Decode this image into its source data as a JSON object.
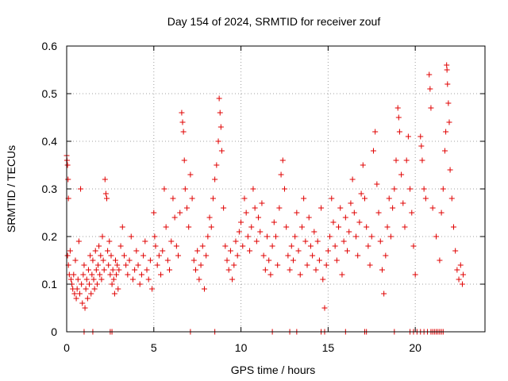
{
  "chart_data": {
    "type": "scatter",
    "title": "Day 154 of 2024, SRMTID for receiver zouf",
    "xlabel": "GPS time / hours",
    "ylabel": "SRMTID / TECUs",
    "xlim": [
      0,
      24
    ],
    "ylim": [
      0,
      0.6
    ],
    "x_ticks": [
      0,
      5,
      10,
      15,
      20
    ],
    "x_tick_labels": [
      "0",
      "5",
      "10",
      "15",
      "20"
    ],
    "y_ticks": [
      0,
      0.1,
      0.2,
      0.3,
      0.4,
      0.5,
      0.6
    ],
    "y_tick_labels": [
      "0",
      "0.1",
      "0.2",
      "0.3",
      "0.4",
      "0.5",
      "0.6"
    ],
    "grid": true,
    "marker": "plus",
    "color": "#e00000",
    "series": [
      {
        "name": "SRMTID",
        "points": [
          [
            0.0,
            0.37
          ],
          [
            0.02,
            0.36
          ],
          [
            0.05,
            0.35
          ],
          [
            0.08,
            0.32
          ],
          [
            0.1,
            0.28
          ],
          [
            0.05,
            0.16
          ],
          [
            0.1,
            0.14
          ],
          [
            0.15,
            0.12
          ],
          [
            0.2,
            0.17
          ],
          [
            0.25,
            0.11
          ],
          [
            0.3,
            0.1
          ],
          [
            0.35,
            0.09
          ],
          [
            0.4,
            0.12
          ],
          [
            0.45,
            0.08
          ],
          [
            0.5,
            0.15
          ],
          [
            0.55,
            0.07
          ],
          [
            0.6,
            0.09
          ],
          [
            0.65,
            0.11
          ],
          [
            0.7,
            0.19
          ],
          [
            0.75,
            0.08
          ],
          [
            0.8,
            0.3
          ],
          [
            0.85,
            0.1
          ],
          [
            0.9,
            0.06
          ],
          [
            0.95,
            0.12
          ],
          [
            1.0,
            0.14
          ],
          [
            1.05,
            0.05
          ],
          [
            1.1,
            0.09
          ],
          [
            1.15,
            0.11
          ],
          [
            1.2,
            0.07
          ],
          [
            1.25,
            0.13
          ],
          [
            1.3,
            0.1
          ],
          [
            1.35,
            0.16
          ],
          [
            1.4,
            0.08
          ],
          [
            1.45,
            0.12
          ],
          [
            1.5,
            0.15
          ],
          [
            1.55,
            0.11
          ],
          [
            1.6,
            0.09
          ],
          [
            1.65,
            0.17
          ],
          [
            1.7,
            0.13
          ],
          [
            1.75,
            0.1
          ],
          [
            1.8,
            0.14
          ],
          [
            1.85,
            0.18
          ],
          [
            1.9,
            0.12
          ],
          [
            1.95,
            0.16
          ],
          [
            2.0,
            0.11
          ],
          [
            2.05,
            0.2
          ],
          [
            2.1,
            0.15
          ],
          [
            2.15,
            0.13
          ],
          [
            2.2,
            0.32
          ],
          [
            2.25,
            0.29
          ],
          [
            2.3,
            0.28
          ],
          [
            2.35,
            0.17
          ],
          [
            2.4,
            0.14
          ],
          [
            2.45,
            0.19
          ],
          [
            2.5,
            0.12
          ],
          [
            2.55,
            0.16
          ],
          [
            2.6,
            0.1
          ],
          [
            2.65,
            0.13
          ],
          [
            2.7,
            0.11
          ],
          [
            2.75,
            0.08
          ],
          [
            2.8,
            0.15
          ],
          [
            2.85,
            0.12
          ],
          [
            2.9,
            0.14
          ],
          [
            2.95,
            0.09
          ],
          [
            3.0,
            0.13
          ],
          [
            3.1,
            0.18
          ],
          [
            3.2,
            0.22
          ],
          [
            3.3,
            0.16
          ],
          [
            3.4,
            0.14
          ],
          [
            3.5,
            0.12
          ],
          [
            3.6,
            0.15
          ],
          [
            3.7,
            0.2
          ],
          [
            3.8,
            0.11
          ],
          [
            3.9,
            0.13
          ],
          [
            4.0,
            0.17
          ],
          [
            4.1,
            0.14
          ],
          [
            4.2,
            0.1
          ],
          [
            4.3,
            0.12
          ],
          [
            4.4,
            0.16
          ],
          [
            4.5,
            0.19
          ],
          [
            4.6,
            0.13
          ],
          [
            4.7,
            0.11
          ],
          [
            4.8,
            0.15
          ],
          [
            4.9,
            0.09
          ],
          [
            5.0,
            0.25
          ],
          [
            5.05,
            0.2
          ],
          [
            5.1,
            0.18
          ],
          [
            5.2,
            0.14
          ],
          [
            5.3,
            0.16
          ],
          [
            5.4,
            0.12
          ],
          [
            5.5,
            0.17
          ],
          [
            5.6,
            0.3
          ],
          [
            5.7,
            0.22
          ],
          [
            5.8,
            0.15
          ],
          [
            5.9,
            0.13
          ],
          [
            6.0,
            0.19
          ],
          [
            6.1,
            0.28
          ],
          [
            6.2,
            0.24
          ],
          [
            6.3,
            0.18
          ],
          [
            6.4,
            0.16
          ],
          [
            6.5,
            0.25
          ],
          [
            6.6,
            0.46
          ],
          [
            6.65,
            0.44
          ],
          [
            6.7,
            0.42
          ],
          [
            6.75,
            0.36
          ],
          [
            6.8,
            0.3
          ],
          [
            6.9,
            0.26
          ],
          [
            7.0,
            0.22
          ],
          [
            7.1,
            0.33
          ],
          [
            7.2,
            0.28
          ],
          [
            7.3,
            0.15
          ],
          [
            7.4,
            0.13
          ],
          [
            7.5,
            0.17
          ],
          [
            7.6,
            0.11
          ],
          [
            7.7,
            0.14
          ],
          [
            7.8,
            0.18
          ],
          [
            7.9,
            0.09
          ],
          [
            8.0,
            0.16
          ],
          [
            8.1,
            0.2
          ],
          [
            8.2,
            0.24
          ],
          [
            8.3,
            0.22
          ],
          [
            8.4,
            0.28
          ],
          [
            8.5,
            0.32
          ],
          [
            8.6,
            0.35
          ],
          [
            8.7,
            0.4
          ],
          [
            8.75,
            0.49
          ],
          [
            8.8,
            0.46
          ],
          [
            8.85,
            0.43
          ],
          [
            8.9,
            0.38
          ],
          [
            9.0,
            0.26
          ],
          [
            9.1,
            0.18
          ],
          [
            9.2,
            0.15
          ],
          [
            9.3,
            0.13
          ],
          [
            9.4,
            0.17
          ],
          [
            9.5,
            0.11
          ],
          [
            9.6,
            0.14
          ],
          [
            9.7,
            0.19
          ],
          [
            9.8,
            0.16
          ],
          [
            9.9,
            0.21
          ],
          [
            10.0,
            0.23
          ],
          [
            10.1,
            0.18
          ],
          [
            10.2,
            0.28
          ],
          [
            10.3,
            0.25
          ],
          [
            10.4,
            0.2
          ],
          [
            10.5,
            0.17
          ],
          [
            10.6,
            0.22
          ],
          [
            10.7,
            0.3
          ],
          [
            10.8,
            0.26
          ],
          [
            10.9,
            0.19
          ],
          [
            11.0,
            0.24
          ],
          [
            11.1,
            0.21
          ],
          [
            11.2,
            0.27
          ],
          [
            11.3,
            0.16
          ],
          [
            11.4,
            0.13
          ],
          [
            11.5,
            0.2
          ],
          [
            11.6,
            0.15
          ],
          [
            11.7,
            0.12
          ],
          [
            11.8,
            0.18
          ],
          [
            11.9,
            0.23
          ],
          [
            12.0,
            0.2
          ],
          [
            12.1,
            0.14
          ],
          [
            12.2,
            0.26
          ],
          [
            12.3,
            0.33
          ],
          [
            12.4,
            0.36
          ],
          [
            12.5,
            0.3
          ],
          [
            12.6,
            0.22
          ],
          [
            12.7,
            0.16
          ],
          [
            12.8,
            0.13
          ],
          [
            12.9,
            0.18
          ],
          [
            13.0,
            0.15
          ],
          [
            13.1,
            0.2
          ],
          [
            13.2,
            0.25
          ],
          [
            13.3,
            0.17
          ],
          [
            13.4,
            0.12
          ],
          [
            13.5,
            0.22
          ],
          [
            13.6,
            0.28
          ],
          [
            13.7,
            0.19
          ],
          [
            13.8,
            0.14
          ],
          [
            13.9,
            0.24
          ],
          [
            14.0,
            0.18
          ],
          [
            14.1,
            0.16
          ],
          [
            14.2,
            0.21
          ],
          [
            14.3,
            0.13
          ],
          [
            14.4,
            0.19
          ],
          [
            14.5,
            0.15
          ],
          [
            14.6,
            0.26
          ],
          [
            14.7,
            0.11
          ],
          [
            14.8,
            0.05
          ],
          [
            14.9,
            0.14
          ],
          [
            15.0,
            0.17
          ],
          [
            15.1,
            0.2
          ],
          [
            15.2,
            0.28
          ],
          [
            15.3,
            0.23
          ],
          [
            15.4,
            0.18
          ],
          [
            15.5,
            0.15
          ],
          [
            15.6,
            0.22
          ],
          [
            15.7,
            0.26
          ],
          [
            15.8,
            0.12
          ],
          [
            15.9,
            0.19
          ],
          [
            16.0,
            0.24
          ],
          [
            16.1,
            0.17
          ],
          [
            16.2,
            0.21
          ],
          [
            16.3,
            0.27
          ],
          [
            16.4,
            0.32
          ],
          [
            16.5,
            0.25
          ],
          [
            16.6,
            0.2
          ],
          [
            16.7,
            0.16
          ],
          [
            16.8,
            0.23
          ],
          [
            16.9,
            0.29
          ],
          [
            17.0,
            0.35
          ],
          [
            17.1,
            0.28
          ],
          [
            17.2,
            0.22
          ],
          [
            17.3,
            0.18
          ],
          [
            17.4,
            0.14
          ],
          [
            17.5,
            0.2
          ],
          [
            17.6,
            0.38
          ],
          [
            17.7,
            0.42
          ],
          [
            17.8,
            0.31
          ],
          [
            17.9,
            0.25
          ],
          [
            18.0,
            0.19
          ],
          [
            18.1,
            0.13
          ],
          [
            18.2,
            0.08
          ],
          [
            18.3,
            0.16
          ],
          [
            18.4,
            0.22
          ],
          [
            18.5,
            0.28
          ],
          [
            18.6,
            0.2
          ],
          [
            18.7,
            0.26
          ],
          [
            18.8,
            0.3
          ],
          [
            18.9,
            0.36
          ],
          [
            19.0,
            0.47
          ],
          [
            19.05,
            0.45
          ],
          [
            19.1,
            0.42
          ],
          [
            19.2,
            0.33
          ],
          [
            19.3,
            0.27
          ],
          [
            19.4,
            0.22
          ],
          [
            19.5,
            0.36
          ],
          [
            19.6,
            0.41
          ],
          [
            19.7,
            0.3
          ],
          [
            19.8,
            0.25
          ],
          [
            19.9,
            0.18
          ],
          [
            20.0,
            0.12
          ],
          [
            20.3,
            0.41
          ],
          [
            20.35,
            0.39
          ],
          [
            20.4,
            0.36
          ],
          [
            20.5,
            0.3
          ],
          [
            20.6,
            0.28
          ],
          [
            20.8,
            0.54
          ],
          [
            20.85,
            0.51
          ],
          [
            20.9,
            0.47
          ],
          [
            21.0,
            0.26
          ],
          [
            21.2,
            0.2
          ],
          [
            21.4,
            0.15
          ],
          [
            21.5,
            0.25
          ],
          [
            21.6,
            0.3
          ],
          [
            21.7,
            0.38
          ],
          [
            21.75,
            0.42
          ],
          [
            21.8,
            0.56
          ],
          [
            21.82,
            0.55
          ],
          [
            21.85,
            0.52
          ],
          [
            21.9,
            0.48
          ],
          [
            21.95,
            0.44
          ],
          [
            22.0,
            0.34
          ],
          [
            22.1,
            0.28
          ],
          [
            22.2,
            0.22
          ],
          [
            22.3,
            0.17
          ],
          [
            22.4,
            0.13
          ],
          [
            22.5,
            0.11
          ],
          [
            22.6,
            0.14
          ],
          [
            22.7,
            0.1
          ],
          [
            22.75,
            0.12
          ],
          [
            1.0,
            0.0
          ],
          [
            1.5,
            0.0
          ],
          [
            2.5,
            0.0
          ],
          [
            2.6,
            0.0
          ],
          [
            7.1,
            0.0
          ],
          [
            8.5,
            0.0
          ],
          [
            11.8,
            0.0
          ],
          [
            12.8,
            0.0
          ],
          [
            13.2,
            0.0
          ],
          [
            14.6,
            0.0
          ],
          [
            14.8,
            0.0
          ],
          [
            16.0,
            0.0
          ],
          [
            17.1,
            0.0
          ],
          [
            17.2,
            0.0
          ],
          [
            18.8,
            0.0
          ],
          [
            19.7,
            0.0
          ],
          [
            19.9,
            0.0
          ],
          [
            20.1,
            0.0
          ],
          [
            20.3,
            0.0
          ],
          [
            20.5,
            0.0
          ],
          [
            20.7,
            0.0
          ],
          [
            20.9,
            0.0
          ],
          [
            21.0,
            0.0
          ],
          [
            21.1,
            0.0
          ],
          [
            21.2,
            0.0
          ],
          [
            21.3,
            0.0
          ],
          [
            21.4,
            0.0
          ],
          [
            21.5,
            0.0
          ],
          [
            21.6,
            0.0
          ]
        ]
      }
    ]
  }
}
